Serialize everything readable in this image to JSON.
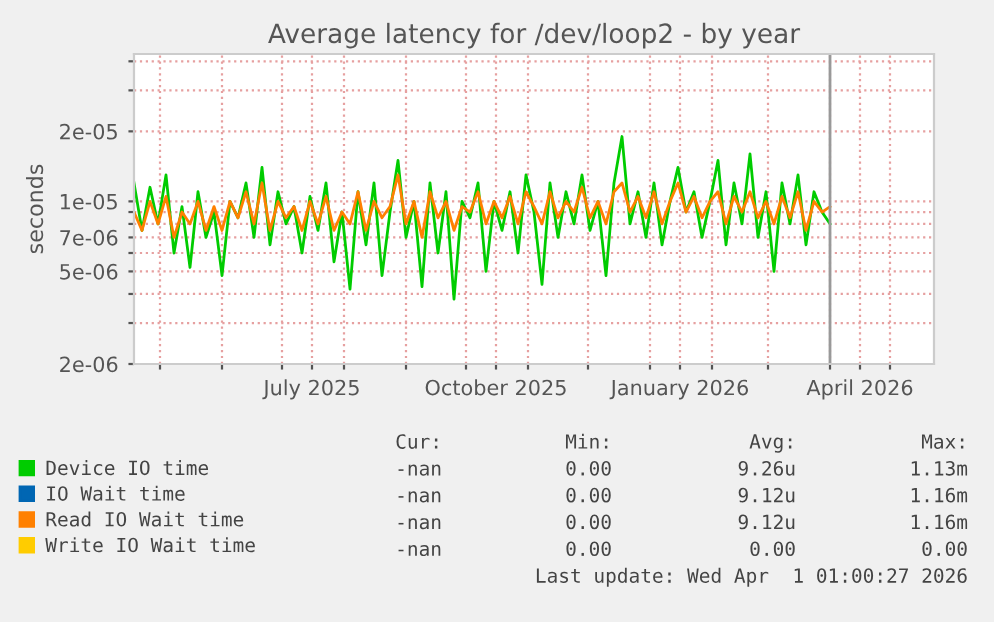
{
  "chart_data": {
    "type": "line",
    "title": "Average latency for /dev/loop2 - by year",
    "ylabel": "seconds",
    "log": "y",
    "grid": true,
    "legend": "bottom",
    "marker": "none",
    "line_style": "solid",
    "x": [
      "2025-04-18",
      "2025-04-22",
      "2025-04-26",
      "2025-04-30",
      "2025-05-04",
      "2025-05-08",
      "2025-05-12",
      "2025-05-16",
      "2025-05-20",
      "2025-05-24",
      "2025-05-28",
      "2025-06-01",
      "2025-06-05",
      "2025-06-09",
      "2025-06-13",
      "2025-06-17",
      "2025-06-21",
      "2025-06-25",
      "2025-06-29",
      "2025-07-03",
      "2025-07-07",
      "2025-07-11",
      "2025-07-15",
      "2025-07-19",
      "2025-07-23",
      "2025-07-27",
      "2025-07-31",
      "2025-08-04",
      "2025-08-08",
      "2025-08-12",
      "2025-08-16",
      "2025-08-20",
      "2025-08-24",
      "2025-08-28",
      "2025-09-01",
      "2025-09-05",
      "2025-09-09",
      "2025-09-13",
      "2025-09-17",
      "2025-09-21",
      "2025-09-25",
      "2025-09-29",
      "2025-10-03",
      "2025-10-07",
      "2025-10-11",
      "2025-10-15",
      "2025-10-19",
      "2025-10-23",
      "2025-10-27",
      "2025-10-31",
      "2025-11-04",
      "2025-11-08",
      "2025-11-12",
      "2025-11-16",
      "2025-11-20",
      "2025-11-24",
      "2025-11-28",
      "2025-12-02",
      "2025-12-06",
      "2025-12-10",
      "2025-12-14",
      "2025-12-18",
      "2025-12-22",
      "2025-12-26",
      "2025-12-30",
      "2026-01-03",
      "2026-01-07",
      "2026-01-11",
      "2026-01-15",
      "2026-01-19",
      "2026-01-23",
      "2026-01-27",
      "2026-01-31",
      "2026-02-04",
      "2026-02-08",
      "2026-02-12",
      "2026-02-16",
      "2026-02-20",
      "2026-02-24",
      "2026-02-28",
      "2026-03-04",
      "2026-03-08",
      "2026-03-12",
      "2026-03-16",
      "2026-03-20",
      "2026-03-24",
      "2026-03-28",
      "2026-04-01"
    ],
    "series": [
      {
        "name": "Device IO time",
        "color": "#00cc00",
        "values": [
          1.2e-05,
          7.5e-06,
          1.15e-05,
          8e-06,
          1.3e-05,
          6e-06,
          9.5e-06,
          5.2e-06,
          1.1e-05,
          7e-06,
          9e-06,
          4.8e-06,
          1e-05,
          8.5e-06,
          1.2e-05,
          7e-06,
          1.4e-05,
          6.5e-06,
          1.1e-05,
          8e-06,
          9.5e-06,
          6e-06,
          1.05e-05,
          7.5e-06,
          1.2e-05,
          5.5e-06,
          9e-06,
          4.2e-06,
          1.1e-05,
          6.5e-06,
          1.2e-05,
          4.8e-06,
          9e-06,
          1.5e-05,
          7e-06,
          1e-05,
          4.3e-06,
          1.2e-05,
          6e-06,
          1.1e-05,
          3.8e-06,
          1e-05,
          8.5e-06,
          1.2e-05,
          5e-06,
          1e-05,
          7.5e-06,
          1.1e-05,
          6e-06,
          1.3e-05,
          9e-06,
          4.4e-06,
          1.2e-05,
          7e-06,
          1.1e-05,
          8e-06,
          1.3e-05,
          7.5e-06,
          1e-05,
          4.8e-06,
          1.2e-05,
          1.9e-05,
          8e-06,
          1.1e-05,
          7e-06,
          1.2e-05,
          6.5e-06,
          1e-05,
          1.4e-05,
          9e-06,
          1.1e-05,
          7e-06,
          1e-05,
          1.5e-05,
          6.5e-06,
          1.2e-05,
          8e-06,
          1.6e-05,
          7e-06,
          1.1e-05,
          5e-06,
          1.2e-05,
          8e-06,
          1.3e-05,
          6.5e-06,
          1.1e-05,
          9e-06,
          8e-06
        ]
      },
      {
        "name": "IO Wait time",
        "color": "#0066b3",
        "values": [
          null,
          null,
          null,
          null,
          null,
          null,
          null,
          null,
          null,
          null,
          null,
          null,
          null,
          null,
          null,
          null,
          null,
          null,
          null,
          null,
          null,
          null,
          null,
          null,
          null,
          null,
          null,
          null,
          null,
          null,
          null,
          null,
          null,
          null,
          null,
          null,
          null,
          null,
          null,
          null,
          null,
          null,
          null,
          null,
          null,
          null,
          null,
          null,
          null,
          null,
          null,
          null,
          null,
          null,
          null,
          null,
          null,
          null,
          null,
          null,
          null,
          null,
          null,
          null,
          null,
          null,
          null,
          null,
          null,
          null,
          null,
          null,
          null,
          null,
          null,
          null,
          null,
          null,
          null,
          null,
          null,
          null,
          null,
          null,
          null,
          null,
          null,
          null
        ]
      },
      {
        "name": "Read IO Wait time",
        "color": "#ff8000",
        "values": [
          9e-06,
          7.5e-06,
          1e-05,
          8e-06,
          1.05e-05,
          7e-06,
          9e-06,
          8e-06,
          1e-05,
          7.5e-06,
          9.5e-06,
          7.5e-06,
          1e-05,
          8.5e-06,
          1.1e-05,
          8e-06,
          1.2e-05,
          7.5e-06,
          1e-05,
          8.5e-06,
          9.5e-06,
          7.5e-06,
          1e-05,
          8e-06,
          1.05e-05,
          7.5e-06,
          9e-06,
          8e-06,
          1.1e-05,
          7.5e-06,
          1e-05,
          8.5e-06,
          9.5e-06,
          1.3e-05,
          8e-06,
          1e-05,
          7e-06,
          1.1e-05,
          8.5e-06,
          1e-05,
          7.5e-06,
          9.5e-06,
          9e-06,
          1.1e-05,
          8e-06,
          1e-05,
          8.5e-06,
          1.05e-05,
          8e-06,
          1.1e-05,
          9.5e-06,
          8e-06,
          1.1e-05,
          8.5e-06,
          1e-05,
          9e-06,
          1.15e-05,
          8.5e-06,
          1e-05,
          8e-06,
          1.1e-05,
          1.2e-05,
          9e-06,
          1.05e-05,
          8.5e-06,
          1.1e-05,
          8e-06,
          1e-05,
          1.2e-05,
          9e-06,
          1.05e-05,
          8.5e-06,
          1e-05,
          1.1e-05,
          8e-06,
          1.05e-05,
          9e-06,
          1.1e-05,
          8.5e-06,
          1e-05,
          8e-06,
          1.05e-05,
          8.5e-06,
          1.1e-05,
          7.5e-06,
          1e-05,
          9e-06,
          9.5e-06
        ]
      },
      {
        "name": "Write IO Wait time",
        "color": "#ffcc00",
        "values": [
          null,
          null,
          null,
          null,
          null,
          null,
          null,
          null,
          null,
          null,
          null,
          null,
          null,
          null,
          null,
          null,
          null,
          null,
          null,
          null,
          null,
          null,
          null,
          null,
          null,
          null,
          null,
          null,
          null,
          null,
          null,
          null,
          null,
          null,
          null,
          null,
          null,
          null,
          null,
          null,
          null,
          null,
          null,
          null,
          null,
          null,
          null,
          null,
          null,
          null,
          null,
          null,
          null,
          null,
          null,
          null,
          null,
          null,
          null,
          null,
          null,
          null,
          null,
          null,
          null,
          null,
          null,
          null,
          null,
          null,
          null,
          null,
          null,
          null,
          null,
          null,
          null,
          null,
          null,
          null,
          null,
          null,
          null,
          null,
          null,
          null,
          null,
          null
        ]
      }
    ],
    "xlim": [
      "2025-04-18",
      "2026-05-23"
    ],
    "xticks": [
      {
        "value": "2025-05-01",
        "label": null
      },
      {
        "value": "2025-06-01",
        "label": null
      },
      {
        "value": "2025-07-01",
        "label": null
      },
      {
        "value": "2025-07-16",
        "label": "July 2025"
      },
      {
        "value": "2025-08-01",
        "label": null
      },
      {
        "value": "2025-09-01",
        "label": null
      },
      {
        "value": "2025-10-01",
        "label": null
      },
      {
        "value": "2025-10-16",
        "label": "October 2025"
      },
      {
        "value": "2025-11-01",
        "label": null
      },
      {
        "value": "2025-12-01",
        "label": null
      },
      {
        "value": "2026-01-01",
        "label": null
      },
      {
        "value": "2026-01-16",
        "label": "January 2026"
      },
      {
        "value": "2026-02-01",
        "label": null
      },
      {
        "value": "2026-03-01",
        "label": null
      },
      {
        "value": "2026-04-01",
        "label": null
      },
      {
        "value": "2026-04-16",
        "label": "April 2026"
      },
      {
        "value": "2026-05-01",
        "label": null
      }
    ],
    "ylim": [
      2e-06,
      4.3e-05
    ],
    "yticks": [
      2e-06,
      {
        "value": 3e-06,
        "label": null
      },
      {
        "value": 4e-06,
        "label": null
      },
      5e-06,
      {
        "value": 6e-06,
        "label": null
      },
      7e-06,
      {
        "value": 8e-06,
        "label": null
      },
      {
        "value": 9e-06,
        "label": null
      },
      1e-05,
      2e-05,
      {
        "value": 3e-05,
        "label": null
      },
      {
        "value": 4e-05,
        "label": null
      }
    ],
    "ref_lines": [
      {
        "axis": "x",
        "value": "2026-04-01",
        "label": null,
        "color": "#999999",
        "line_style": "solid"
      }
    ],
    "annotations": [
      "Cur:",
      "Min:",
      "Avg:",
      "Max:",
      "-nan",
      "0.00",
      "9.26u",
      "1.13m",
      "-nan",
      "0.00",
      "9.12u",
      "1.16m",
      "-nan",
      "0.00",
      "9.12u",
      "1.16m",
      "-nan",
      "0.00",
      "0.00",
      "0.00",
      "Last update: Wed Apr  1 01:00:27 2026"
    ]
  }
}
